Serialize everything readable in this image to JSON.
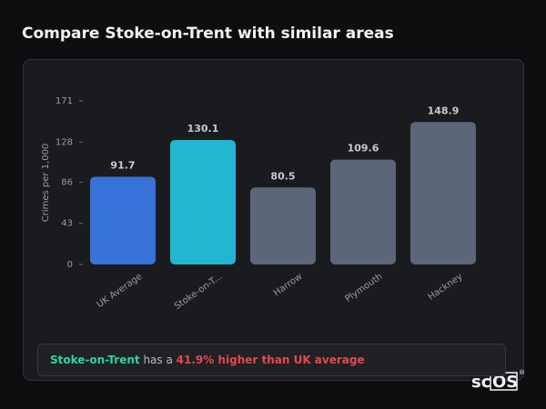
{
  "header": {
    "title": "Compare Stoke-on-Trent with similar areas"
  },
  "chart_data": {
    "type": "bar",
    "y_label": "Crimes per 1,000",
    "categories": [
      "UK Average",
      "Stoke-on-T...",
      "Harrow",
      "Plymouth",
      "Hackney"
    ],
    "values": [
      91.7,
      130.1,
      80.5,
      109.6,
      148.9
    ],
    "colors": [
      "#3772d6",
      "#22b6d0",
      "#5b6678",
      "#5b6678",
      "#5b6678"
    ],
    "ylim": [
      0,
      171
    ],
    "yticks": [
      0,
      43,
      86,
      128,
      171
    ]
  },
  "summary": {
    "area": "Stoke-on-Trent",
    "middle": "has a",
    "comparison": "41.9% higher than UK average"
  },
  "logo": {
    "left": "sc",
    "right": "OS",
    "mark": "®"
  }
}
